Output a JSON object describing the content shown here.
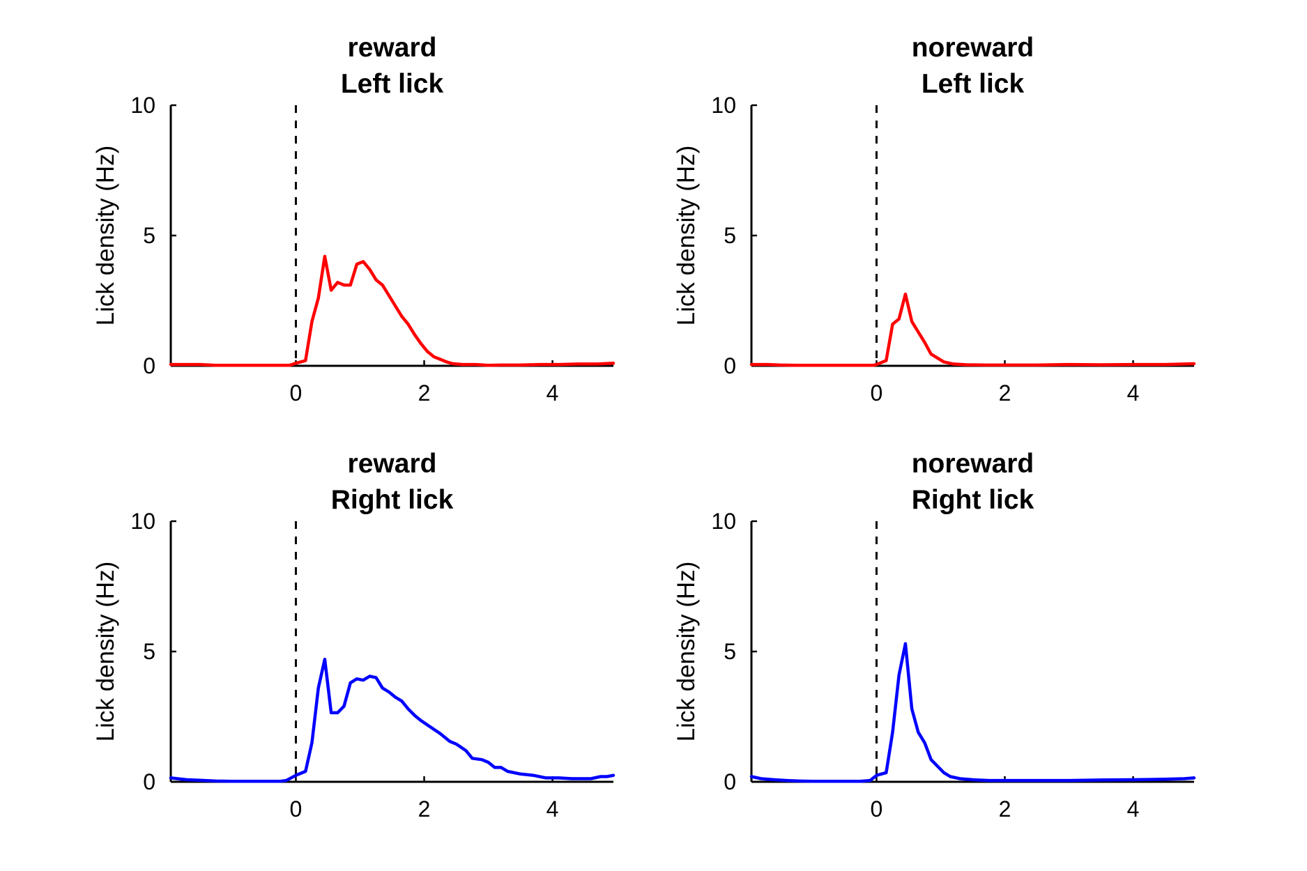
{
  "chart_data": [
    {
      "type": "line",
      "title": [
        "reward",
        "Left lick"
      ],
      "xlabel": "",
      "ylabel": "Lick density (Hz)",
      "xlim": [
        -1.95,
        4.95
      ],
      "ylim": [
        0,
        10
      ],
      "xticks": [
        0,
        2,
        4
      ],
      "yticks": [
        0,
        5,
        10
      ],
      "grid": false,
      "vline_x": 0,
      "color": "#ff0000",
      "series": [
        {
          "x": [
            -1.95,
            -1.7,
            -1.5,
            -1.25,
            -1.0,
            -0.75,
            -0.5,
            -0.25,
            -0.1,
            0.0,
            0.15,
            0.25,
            0.35,
            0.45,
            0.55,
            0.65,
            0.75,
            0.85,
            0.95,
            1.05,
            1.15,
            1.25,
            1.35,
            1.45,
            1.55,
            1.65,
            1.75,
            1.85,
            1.95,
            2.05,
            2.15,
            2.25,
            2.35,
            2.45,
            2.6,
            2.8,
            3.0,
            3.2,
            3.5,
            3.8,
            4.1,
            4.4,
            4.7,
            4.95
          ],
          "y": [
            0.05,
            0.05,
            0.05,
            0.02,
            0.02,
            0.02,
            0.02,
            0.02,
            0.02,
            0.1,
            0.2,
            1.7,
            2.6,
            4.2,
            2.9,
            3.2,
            3.1,
            3.1,
            3.9,
            4.0,
            3.7,
            3.3,
            3.1,
            2.7,
            2.3,
            1.9,
            1.6,
            1.2,
            0.85,
            0.55,
            0.35,
            0.25,
            0.15,
            0.08,
            0.05,
            0.05,
            0.02,
            0.03,
            0.03,
            0.05,
            0.05,
            0.07,
            0.07,
            0.1
          ]
        }
      ]
    },
    {
      "type": "line",
      "title": [
        "noreward",
        "Left lick"
      ],
      "xlabel": "",
      "ylabel": "Lick density (Hz)",
      "xlim": [
        -1.95,
        4.95
      ],
      "ylim": [
        0,
        10
      ],
      "xticks": [
        0,
        2,
        4
      ],
      "yticks": [
        0,
        5,
        10
      ],
      "grid": false,
      "vline_x": 0,
      "color": "#ff0000",
      "series": [
        {
          "x": [
            -1.95,
            -1.7,
            -1.5,
            -1.25,
            -1.0,
            -0.75,
            -0.5,
            -0.25,
            -0.05,
            0.0,
            0.15,
            0.25,
            0.35,
            0.45,
            0.55,
            0.65,
            0.75,
            0.85,
            0.95,
            1.05,
            1.2,
            1.4,
            1.7,
            2.0,
            2.5,
            3.0,
            3.5,
            4.0,
            4.5,
            4.95
          ],
          "y": [
            0.05,
            0.05,
            0.03,
            0.02,
            0.02,
            0.02,
            0.02,
            0.02,
            0.02,
            0.05,
            0.2,
            1.6,
            1.8,
            2.75,
            1.7,
            1.3,
            0.9,
            0.45,
            0.3,
            0.15,
            0.07,
            0.04,
            0.03,
            0.03,
            0.03,
            0.05,
            0.04,
            0.05,
            0.05,
            0.08
          ]
        }
      ]
    },
    {
      "type": "line",
      "title": [
        "reward",
        "Right lick"
      ],
      "xlabel": "",
      "ylabel": "Lick density (Hz)",
      "xlim": [
        -1.95,
        4.95
      ],
      "ylim": [
        0,
        10
      ],
      "xticks": [
        0,
        2,
        4
      ],
      "yticks": [
        0,
        5,
        10
      ],
      "grid": false,
      "vline_x": 0,
      "color": "#0000ff",
      "series": [
        {
          "x": [
            -1.95,
            -1.85,
            -1.7,
            -1.5,
            -1.25,
            -1.0,
            -0.75,
            -0.5,
            -0.25,
            -0.15,
            0.0,
            0.15,
            0.25,
            0.35,
            0.45,
            0.55,
            0.65,
            0.75,
            0.85,
            0.95,
            1.05,
            1.15,
            1.25,
            1.35,
            1.45,
            1.55,
            1.65,
            1.75,
            1.85,
            1.95,
            2.1,
            2.25,
            2.4,
            2.5,
            2.65,
            2.75,
            2.9,
            3.0,
            3.1,
            3.2,
            3.3,
            3.5,
            3.7,
            3.9,
            4.1,
            4.3,
            4.5,
            4.6,
            4.75,
            4.85,
            4.95
          ],
          "y": [
            0.15,
            0.12,
            0.08,
            0.06,
            0.03,
            0.02,
            0.02,
            0.02,
            0.02,
            0.05,
            0.25,
            0.4,
            1.5,
            3.6,
            4.7,
            2.65,
            2.65,
            2.9,
            3.8,
            3.95,
            3.9,
            4.05,
            4.0,
            3.6,
            3.45,
            3.25,
            3.1,
            2.8,
            2.55,
            2.35,
            2.1,
            1.85,
            1.55,
            1.45,
            1.2,
            0.9,
            0.85,
            0.75,
            0.55,
            0.55,
            0.4,
            0.3,
            0.25,
            0.15,
            0.15,
            0.12,
            0.12,
            0.12,
            0.2,
            0.2,
            0.25
          ]
        }
      ]
    },
    {
      "type": "line",
      "title": [
        "noreward",
        "Right lick"
      ],
      "xlabel": "",
      "ylabel": "Lick density (Hz)",
      "xlim": [
        -1.95,
        4.95
      ],
      "ylim": [
        0,
        10
      ],
      "xticks": [
        0,
        2,
        4
      ],
      "yticks": [
        0,
        5,
        10
      ],
      "grid": false,
      "vline_x": 0,
      "color": "#0000ff",
      "series": [
        {
          "x": [
            -1.95,
            -1.8,
            -1.6,
            -1.4,
            -1.2,
            -1.0,
            -0.75,
            -0.5,
            -0.25,
            -0.1,
            0.0,
            0.15,
            0.25,
            0.35,
            0.45,
            0.55,
            0.65,
            0.75,
            0.85,
            0.95,
            1.05,
            1.15,
            1.3,
            1.5,
            1.75,
            2.0,
            2.5,
            3.0,
            3.5,
            4.0,
            4.5,
            4.8,
            4.95
          ],
          "y": [
            0.2,
            0.12,
            0.08,
            0.05,
            0.03,
            0.02,
            0.02,
            0.02,
            0.02,
            0.05,
            0.25,
            0.35,
            1.9,
            4.1,
            5.3,
            2.8,
            1.9,
            1.5,
            0.85,
            0.6,
            0.35,
            0.2,
            0.12,
            0.08,
            0.05,
            0.05,
            0.05,
            0.05,
            0.07,
            0.08,
            0.1,
            0.12,
            0.15
          ]
        }
      ]
    }
  ]
}
